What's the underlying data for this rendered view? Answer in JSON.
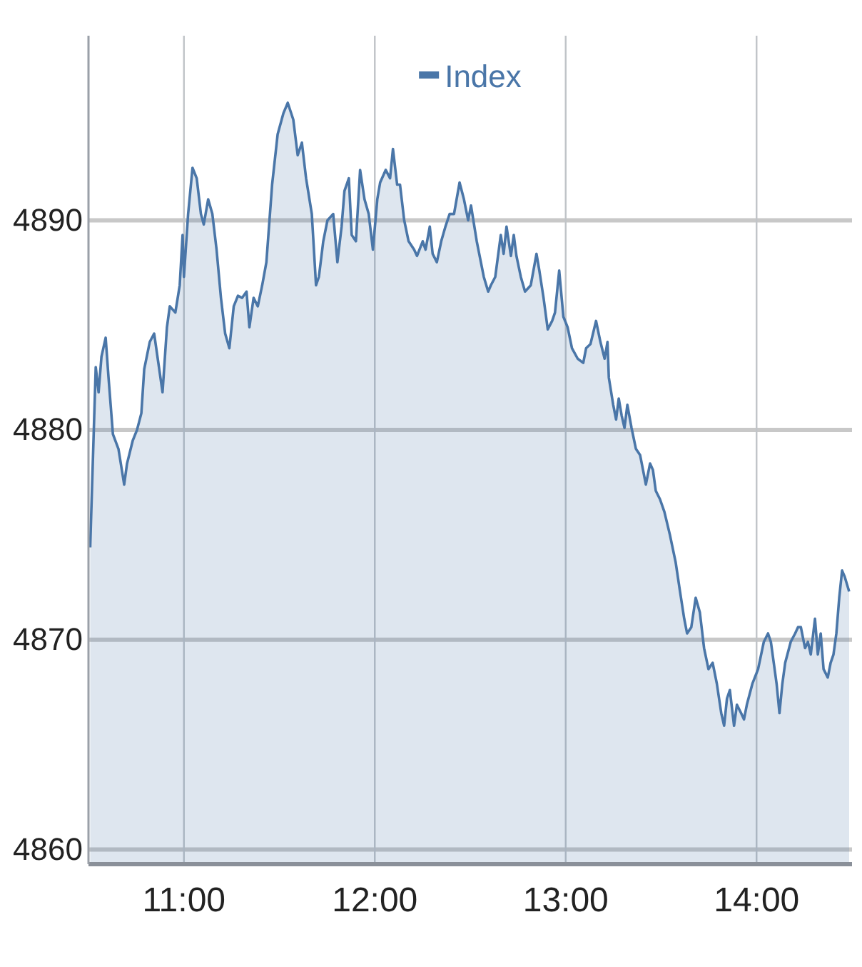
{
  "chart_data": {
    "type": "area",
    "legend": "top",
    "grid": true,
    "marker": "none",
    "line_style": "solid",
    "xlim": [
      10.5,
      14.5
    ],
    "ylim": [
      4859.3,
      4898.8
    ],
    "xticks": [
      {
        "value": 11,
        "label": "11:00"
      },
      {
        "value": 12,
        "label": "12:00"
      },
      {
        "value": 13,
        "label": "13:00"
      },
      {
        "value": 14,
        "label": "14:00"
      }
    ],
    "yticks": [
      4860,
      4870,
      4880,
      4890
    ],
    "series": [
      {
        "name": "Index",
        "color": "#4a76a8",
        "x": [
          10.509,
          10.538,
          10.553,
          10.568,
          10.59,
          10.605,
          10.628,
          10.657,
          10.687,
          10.702,
          10.732,
          10.754,
          10.777,
          10.792,
          10.821,
          10.844,
          10.866,
          10.888,
          10.911,
          10.926,
          10.955,
          10.978,
          10.993,
          11.0,
          11.022,
          11.045,
          11.067,
          11.089,
          11.104,
          11.127,
          11.149,
          11.171,
          11.194,
          11.216,
          11.238,
          11.261,
          11.283,
          11.305,
          11.328,
          11.343,
          11.365,
          11.387,
          11.41,
          11.432,
          11.462,
          11.491,
          11.521,
          11.544,
          11.573,
          11.596,
          11.618,
          11.64,
          11.67,
          11.692,
          11.707,
          11.73,
          11.752,
          11.782,
          11.804,
          11.826,
          11.841,
          11.864,
          11.879,
          11.901,
          11.923,
          11.946,
          11.968,
          11.99,
          12.013,
          12.028,
          12.057,
          12.08,
          12.095,
          12.117,
          12.132,
          12.154,
          12.177,
          12.206,
          12.221,
          12.251,
          12.266,
          12.288,
          12.303,
          12.325,
          12.348,
          12.37,
          12.392,
          12.415,
          12.444,
          12.467,
          12.489,
          12.504,
          12.534,
          12.571,
          12.594,
          12.608,
          12.631,
          12.66,
          12.675,
          12.69,
          12.713,
          12.728,
          12.742,
          12.765,
          12.787,
          12.817,
          12.847,
          12.862,
          12.884,
          12.906,
          12.929,
          12.944,
          12.966,
          12.988,
          13.01,
          13.033,
          13.063,
          13.092,
          13.107,
          13.13,
          13.159,
          13.182,
          13.204,
          13.219,
          13.226,
          13.249,
          13.264,
          13.278,
          13.293,
          13.308,
          13.323,
          13.345,
          13.368,
          13.39,
          13.405,
          13.42,
          13.442,
          13.457,
          13.472,
          13.494,
          13.517,
          13.546,
          13.576,
          13.599,
          13.621,
          13.636,
          13.658,
          13.681,
          13.703,
          13.725,
          13.748,
          13.77,
          13.792,
          13.815,
          13.83,
          13.845,
          13.86,
          13.882,
          13.897,
          13.919,
          13.934,
          13.949,
          13.978,
          14.008,
          14.038,
          14.06,
          14.075,
          14.09,
          14.105,
          14.12,
          14.135,
          14.15,
          14.179,
          14.202,
          14.217,
          14.232,
          14.254,
          14.269,
          14.284,
          14.306,
          14.321,
          14.336,
          14.351,
          14.373,
          14.388,
          14.403,
          14.418,
          14.433,
          14.448,
          14.462,
          14.485
        ],
        "values": [
          4874.4,
          4883.0,
          4881.8,
          4883.5,
          4884.4,
          4882.5,
          4879.8,
          4879.1,
          4877.4,
          4878.4,
          4879.5,
          4880.0,
          4880.8,
          4882.9,
          4884.2,
          4884.6,
          4883.2,
          4881.8,
          4884.9,
          4885.9,
          4885.6,
          4886.9,
          4889.3,
          4887.3,
          4890.3,
          4892.5,
          4892.0,
          4890.3,
          4889.8,
          4891.0,
          4890.3,
          4888.6,
          4886.3,
          4884.6,
          4883.9,
          4885.9,
          4886.4,
          4886.3,
          4886.6,
          4884.9,
          4886.3,
          4885.9,
          4886.9,
          4888.0,
          4891.7,
          4894.1,
          4895.1,
          4895.6,
          4894.8,
          4893.1,
          4893.7,
          4892.0,
          4890.3,
          4886.9,
          4887.3,
          4889.0,
          4890.0,
          4890.3,
          4888.0,
          4889.7,
          4891.4,
          4892.0,
          4889.3,
          4889.0,
          4892.4,
          4891.0,
          4890.3,
          4888.6,
          4891.0,
          4891.8,
          4892.4,
          4892.0,
          4893.4,
          4891.7,
          4891.7,
          4890.0,
          4889.0,
          4888.6,
          4888.3,
          4889.0,
          4888.6,
          4889.7,
          4888.4,
          4888.0,
          4889.0,
          4889.7,
          4890.3,
          4890.3,
          4891.8,
          4891.0,
          4890.0,
          4890.7,
          4889.0,
          4887.3,
          4886.6,
          4886.9,
          4887.3,
          4889.3,
          4888.4,
          4889.7,
          4888.3,
          4889.3,
          4888.3,
          4887.3,
          4886.6,
          4886.9,
          4888.4,
          4887.6,
          4886.3,
          4884.8,
          4885.2,
          4885.6,
          4887.6,
          4885.4,
          4884.9,
          4883.9,
          4883.4,
          4883.2,
          4883.9,
          4884.1,
          4885.2,
          4884.2,
          4883.4,
          4884.2,
          4882.5,
          4881.2,
          4880.5,
          4881.5,
          4880.7,
          4880.1,
          4881.2,
          4880.1,
          4879.1,
          4878.8,
          4878.1,
          4877.4,
          4878.4,
          4878.1,
          4877.1,
          4876.7,
          4876.1,
          4875.0,
          4873.7,
          4872.3,
          4871.0,
          4870.3,
          4870.6,
          4872.0,
          4871.3,
          4869.6,
          4868.6,
          4868.9,
          4867.9,
          4866.5,
          4865.9,
          4867.2,
          4867.6,
          4865.9,
          4866.9,
          4866.5,
          4866.2,
          4866.9,
          4867.9,
          4868.6,
          4869.9,
          4870.3,
          4869.9,
          4868.9,
          4867.9,
          4866.5,
          4867.9,
          4868.9,
          4869.9,
          4870.3,
          4870.6,
          4870.6,
          4869.6,
          4869.9,
          4869.3,
          4871.0,
          4869.3,
          4870.3,
          4868.6,
          4868.2,
          4868.9,
          4869.3,
          4870.3,
          4872.0,
          4873.3,
          4873.0,
          4872.3
        ]
      }
    ]
  }
}
